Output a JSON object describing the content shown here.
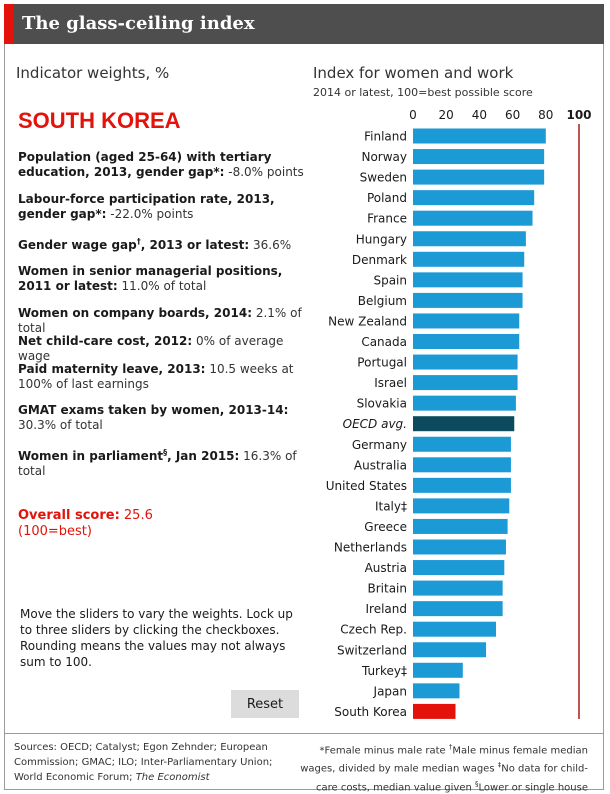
{
  "header": {
    "title": "The glass-ceiling index"
  },
  "weights": {
    "heading": "Indicator weights, %"
  },
  "country": {
    "name": "SOUTH KOREA"
  },
  "indicators": [
    {
      "label": "Population (aged 25-64) with tertiary education, 2013, gender gap*:",
      "value": "-8.0% points"
    },
    {
      "label": "Labour-force participation rate, 2013, gender gap*:",
      "value": "-22.0% points"
    },
    {
      "label": "Gender wage gap",
      "sup": "†",
      "label_after": ", 2013 or latest:",
      "value": "36.6%"
    },
    {
      "label": "Women in senior managerial positions, 2011 or latest:",
      "value": "11.0% of total"
    },
    {
      "label": "Women on company boards, 2014:",
      "value": "2.1% of total"
    },
    {
      "label": "Net child-care cost, 2012:",
      "value": "0% of average wage"
    },
    {
      "label": "Paid maternity leave, 2013:",
      "value": "10.5 weeks at 100% of last earnings"
    },
    {
      "label": "GMAT exams taken by women, 2013-14:",
      "value": "30.3% of total"
    },
    {
      "label": "Women in parliament",
      "sup": "§",
      "label_after": ", Jan 2015:",
      "value": "16.3% of total"
    }
  ],
  "score": {
    "label": "Overall score:",
    "value": "25.6",
    "note": "(100=best)"
  },
  "instructions": {
    "text": "Move the sliders to vary the weights. Lock up to three sliders by clicking the checkboxes. Rounding means the values may not always sum to 100."
  },
  "reset": {
    "label": "Reset"
  },
  "chart": {
    "heading": "Index for women and work",
    "subheading": "2014 or latest, 100=best possible score"
  },
  "chart_data": {
    "type": "bar",
    "orientation": "horizontal",
    "title": "Index for women and work",
    "subtitle": "2014 or latest, 100=best possible score",
    "xlim": [
      0,
      100
    ],
    "xticks": [
      0,
      20,
      40,
      60,
      80,
      100
    ],
    "reference_line": 100,
    "grid": false,
    "categories": [
      "Finland",
      "Norway",
      "Sweden",
      "Poland",
      "France",
      "Hungary",
      "Denmark",
      "Spain",
      "Belgium",
      "New Zealand",
      "Canada",
      "Portugal",
      "Israel",
      "Slovakia",
      "OECD avg.",
      "Germany",
      "Australia",
      "United States",
      "Italy‡",
      "Greece",
      "Netherlands",
      "Austria",
      "Britain",
      "Ireland",
      "Czech Rep.",
      "Switzerland",
      "Turkey‡",
      "Japan",
      "South Korea"
    ],
    "values": [
      80,
      79,
      79,
      73,
      72,
      68,
      67,
      66,
      66,
      64,
      64,
      63,
      63,
      62,
      61,
      59,
      59,
      59,
      58,
      57,
      56,
      55,
      54,
      54,
      50,
      44,
      30,
      28,
      25.6
    ],
    "highlight": {
      "South Korea": "#e3120b",
      "OECD avg.": "#0d4a5e"
    },
    "bar_color": "#1c9ad6"
  },
  "footer": {
    "sources_prefix": "Sources: OECD; Catalyst; Egon Zehnder; European Commission; GMAC; ILO; Inter-Parliamentary Union; World Economic Forum;",
    "sources_italic": "The Economist",
    "note1": "*Female minus male rate",
    "note2_sup": "†",
    "note2": "Male minus female median wages, divided by male median wages",
    "note3_sup": "‡",
    "note3": "No data for child-care costs, median value given",
    "note4_sup": "§",
    "note4": "Lower or single house"
  }
}
